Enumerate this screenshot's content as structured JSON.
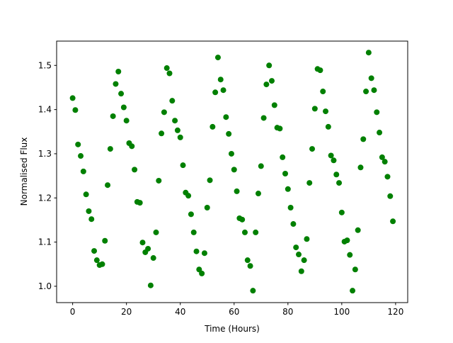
{
  "chart_data": {
    "type": "scatter",
    "xlabel": "Time (Hours)",
    "ylabel": "Normalised Flux",
    "color": "#008000",
    "x": [
      0,
      1,
      2,
      3,
      4,
      5,
      6,
      7,
      8,
      9,
      10,
      11,
      12,
      13,
      14,
      15,
      16,
      17,
      18,
      19,
      20,
      21,
      22,
      23,
      24,
      25,
      26,
      27,
      28,
      29,
      30,
      31,
      32,
      33,
      34,
      35,
      36,
      37,
      38,
      39,
      40,
      41,
      42,
      43,
      44,
      45,
      46,
      47,
      48,
      49,
      50,
      51,
      52,
      53,
      54,
      55,
      56,
      57,
      58,
      59,
      60,
      61,
      62,
      63,
      64,
      65,
      66,
      67,
      68,
      69,
      70,
      71,
      72,
      73,
      74,
      75,
      76,
      77,
      78,
      79,
      80,
      81,
      82,
      83,
      84,
      85,
      86,
      87,
      88,
      89,
      90,
      91,
      92,
      93,
      94,
      95,
      96,
      97,
      98,
      99,
      100,
      101,
      102,
      103,
      104,
      105,
      106,
      107,
      108,
      109,
      110,
      111,
      112,
      113,
      114,
      115,
      116,
      117,
      118,
      119
    ],
    "values": [
      1.426,
      1.399,
      1.321,
      1.295,
      1.26,
      1.208,
      1.17,
      1.152,
      1.08,
      1.059,
      1.048,
      1.05,
      1.103,
      1.229,
      1.311,
      1.385,
      1.458,
      1.486,
      1.436,
      1.405,
      1.375,
      1.324,
      1.317,
      1.264,
      1.191,
      1.189,
      1.099,
      1.077,
      1.085,
      1.002,
      1.064,
      1.122,
      1.239,
      1.346,
      1.394,
      1.494,
      1.482,
      1.42,
      1.375,
      1.353,
      1.337,
      1.274,
      1.212,
      1.205,
      1.163,
      1.122,
      1.079,
      1.038,
      1.029,
      1.075,
      1.178,
      1.24,
      1.361,
      1.439,
      1.518,
      1.468,
      1.444,
      1.383,
      1.345,
      1.3,
      1.264,
      1.215,
      1.154,
      1.151,
      1.122,
      1.059,
      1.046,
      0.99,
      1.122,
      1.21,
      1.272,
      1.381,
      1.457,
      1.5,
      1.465,
      1.41,
      1.359,
      1.357,
      1.292,
      1.255,
      1.22,
      1.178,
      1.141,
      1.088,
      1.072,
      1.034,
      1.059,
      1.107,
      1.234,
      1.311,
      1.402,
      1.492,
      1.489,
      1.441,
      1.396,
      1.361,
      1.296,
      1.285,
      1.253,
      1.234,
      1.167,
      1.101,
      1.104,
      1.071,
      0.99,
      1.038,
      1.127,
      1.269,
      1.333,
      1.441,
      1.529,
      1.471,
      1.444,
      1.394,
      1.348,
      1.292,
      1.282,
      1.248,
      1.204,
      1.147
    ],
    "xlim": [
      -5.95,
      124.5
    ],
    "ylim": [
      0.963,
      1.555
    ],
    "xticks": [
      0,
      20,
      40,
      60,
      80,
      100,
      120
    ],
    "yticks": [
      {
        "value": 1,
        "label": "1.0"
      },
      1.1,
      1.2,
      1.3,
      1.4,
      1.5
    ]
  }
}
